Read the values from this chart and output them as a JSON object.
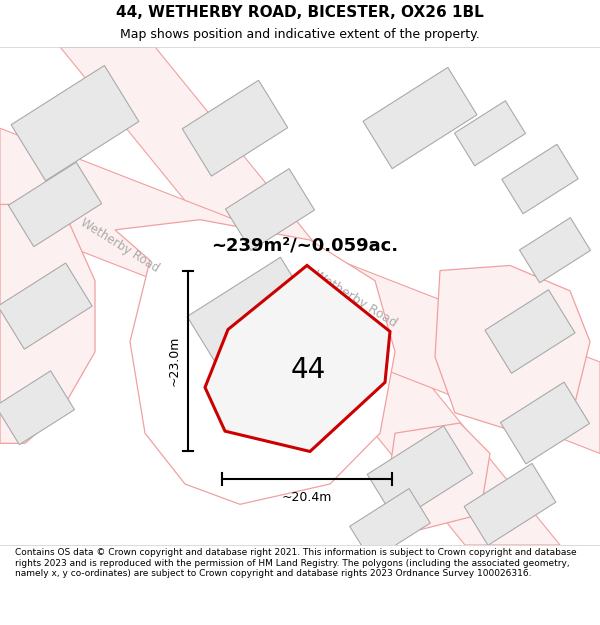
{
  "title": "44, WETHERBY ROAD, BICESTER, OX26 1BL",
  "subtitle": "Map shows position and indicative extent of the property.",
  "footer": "Contains OS data © Crown copyright and database right 2021. This information is subject to Crown copyright and database rights 2023 and is reproduced with the permission of HM Land Registry. The polygons (including the associated geometry, namely x, y co-ordinates) are subject to Crown copyright and database rights 2023 Ordnance Survey 100026316.",
  "area_label": "~239m²/~0.059ac.",
  "width_label": "~20.4m",
  "height_label": "~23.0m",
  "property_number": "44",
  "map_bg": "#ffffff",
  "plot_edge_color": "#cc0000",
  "plot_fill": "#f0f0f0",
  "building_fill": "#e8e8e8",
  "building_outline": "#aaaaaa",
  "road_outline_color": "#f0a0a0",
  "road_label_color": "#aaaaaa",
  "wetherby_road_label": "Wetherby Road"
}
